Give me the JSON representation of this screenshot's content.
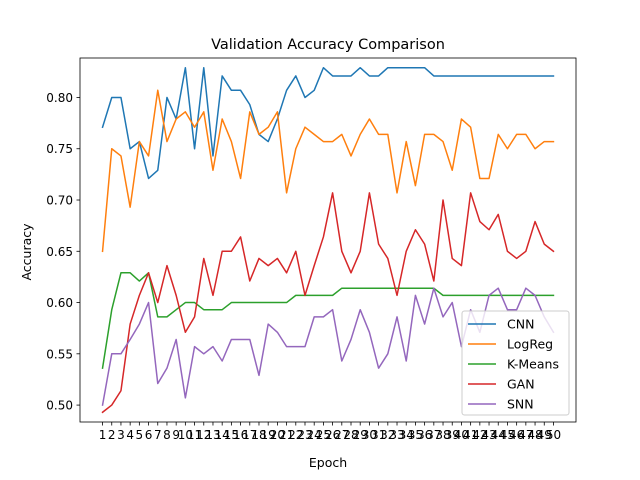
{
  "chart_data": {
    "type": "line",
    "title": "Validation Accuracy Comparison",
    "xlabel": "Epoch",
    "ylabel": "Accuracy",
    "x": [
      1,
      2,
      3,
      4,
      5,
      6,
      7,
      8,
      9,
      10,
      11,
      12,
      13,
      14,
      15,
      16,
      17,
      18,
      19,
      20,
      21,
      22,
      23,
      24,
      25,
      26,
      27,
      28,
      29,
      30,
      31,
      32,
      33,
      34,
      35,
      36,
      37,
      38,
      39,
      40,
      41,
      42,
      43,
      44,
      45,
      46,
      47,
      48,
      49,
      50
    ],
    "xtick_labels": [
      "1",
      "2",
      "3",
      "4",
      "5",
      "6",
      "7",
      "8",
      "9",
      "10",
      "11",
      "12",
      "13",
      "14",
      "15",
      "16",
      "17",
      "18",
      "19",
      "20",
      "21",
      "22",
      "23",
      "24",
      "25",
      "26",
      "27",
      "28",
      "29",
      "30",
      "31",
      "32",
      "33",
      "34",
      "35",
      "36",
      "37",
      "38",
      "39",
      "40",
      "41",
      "42",
      "43",
      "44",
      "45",
      "46",
      "47",
      "48",
      "49",
      "50"
    ],
    "xlim": [
      -1.45,
      52.45
    ],
    "ylim": [
      0.4835,
      0.8385
    ],
    "yticks": [
      0.5,
      0.55,
      0.6,
      0.65,
      0.7,
      0.75,
      0.8
    ],
    "ytick_labels": [
      "0.50",
      "0.55",
      "0.60",
      "0.65",
      "0.70",
      "0.75",
      "0.80"
    ],
    "grid": false,
    "legend_position": "lower-right",
    "series": [
      {
        "name": "CNN",
        "color": "#1f77b4",
        "values": [
          0.771,
          0.8,
          0.8,
          0.75,
          0.757,
          0.721,
          0.729,
          0.8,
          0.779,
          0.829,
          0.75,
          0.829,
          0.743,
          0.821,
          0.807,
          0.807,
          0.793,
          0.764,
          0.757,
          0.779,
          0.807,
          0.821,
          0.8,
          0.807,
          0.829,
          0.821,
          0.821,
          0.821,
          0.829,
          0.821,
          0.821,
          0.829,
          0.829,
          0.829,
          0.829,
          0.829,
          0.821,
          0.821,
          0.821,
          0.821,
          0.821,
          0.821,
          0.821,
          0.821,
          0.821,
          0.821,
          0.821,
          0.821,
          0.821,
          0.821
        ]
      },
      {
        "name": "LogReg",
        "color": "#ff7f0e",
        "values": [
          0.65,
          0.75,
          0.743,
          0.693,
          0.757,
          0.743,
          0.807,
          0.757,
          0.779,
          0.786,
          0.771,
          0.786,
          0.729,
          0.779,
          0.757,
          0.721,
          0.786,
          0.764,
          0.771,
          0.786,
          0.707,
          0.75,
          0.771,
          0.764,
          0.757,
          0.757,
          0.764,
          0.743,
          0.764,
          0.779,
          0.764,
          0.764,
          0.707,
          0.757,
          0.714,
          0.764,
          0.764,
          0.757,
          0.729,
          0.779,
          0.771,
          0.721,
          0.721,
          0.764,
          0.75,
          0.764,
          0.764,
          0.75,
          0.757,
          0.757
        ]
      },
      {
        "name": "K-Means",
        "color": "#2ca02c",
        "values": [
          0.536,
          0.593,
          0.629,
          0.629,
          0.621,
          0.629,
          0.586,
          0.586,
          0.593,
          0.6,
          0.6,
          0.593,
          0.593,
          0.593,
          0.6,
          0.6,
          0.6,
          0.6,
          0.6,
          0.6,
          0.6,
          0.607,
          0.607,
          0.607,
          0.607,
          0.607,
          0.614,
          0.614,
          0.614,
          0.614,
          0.614,
          0.614,
          0.614,
          0.614,
          0.614,
          0.614,
          0.614,
          0.607,
          0.607,
          0.607,
          0.607,
          0.607,
          0.607,
          0.607,
          0.607,
          0.607,
          0.607,
          0.607,
          0.607,
          0.607
        ]
      },
      {
        "name": "GAN",
        "color": "#d62728",
        "values": [
          0.493,
          0.5,
          0.514,
          0.579,
          0.607,
          0.629,
          0.6,
          0.636,
          0.607,
          0.571,
          0.586,
          0.643,
          0.607,
          0.65,
          0.65,
          0.664,
          0.621,
          0.643,
          0.636,
          0.643,
          0.629,
          0.65,
          0.607,
          0.636,
          0.664,
          0.707,
          0.65,
          0.629,
          0.65,
          0.707,
          0.657,
          0.643,
          0.607,
          0.65,
          0.671,
          0.657,
          0.621,
          0.7,
          0.643,
          0.636,
          0.707,
          0.679,
          0.671,
          0.686,
          0.65,
          0.643,
          0.65,
          0.679,
          0.657,
          0.65
        ]
      },
      {
        "name": "SNN",
        "color": "#9467bd",
        "values": [
          0.5,
          0.55,
          0.55,
          0.564,
          0.579,
          0.6,
          0.521,
          0.536,
          0.564,
          0.507,
          0.557,
          0.55,
          0.557,
          0.543,
          0.564,
          0.564,
          0.564,
          0.529,
          0.579,
          0.571,
          0.557,
          0.557,
          0.557,
          0.586,
          0.586,
          0.593,
          0.543,
          0.564,
          0.593,
          0.571,
          0.536,
          0.55,
          0.586,
          0.543,
          0.607,
          0.579,
          0.614,
          0.586,
          0.6,
          0.557,
          0.593,
          0.571,
          0.607,
          0.614,
          0.593,
          0.593,
          0.614,
          0.607,
          0.586,
          0.571
        ]
      }
    ]
  }
}
